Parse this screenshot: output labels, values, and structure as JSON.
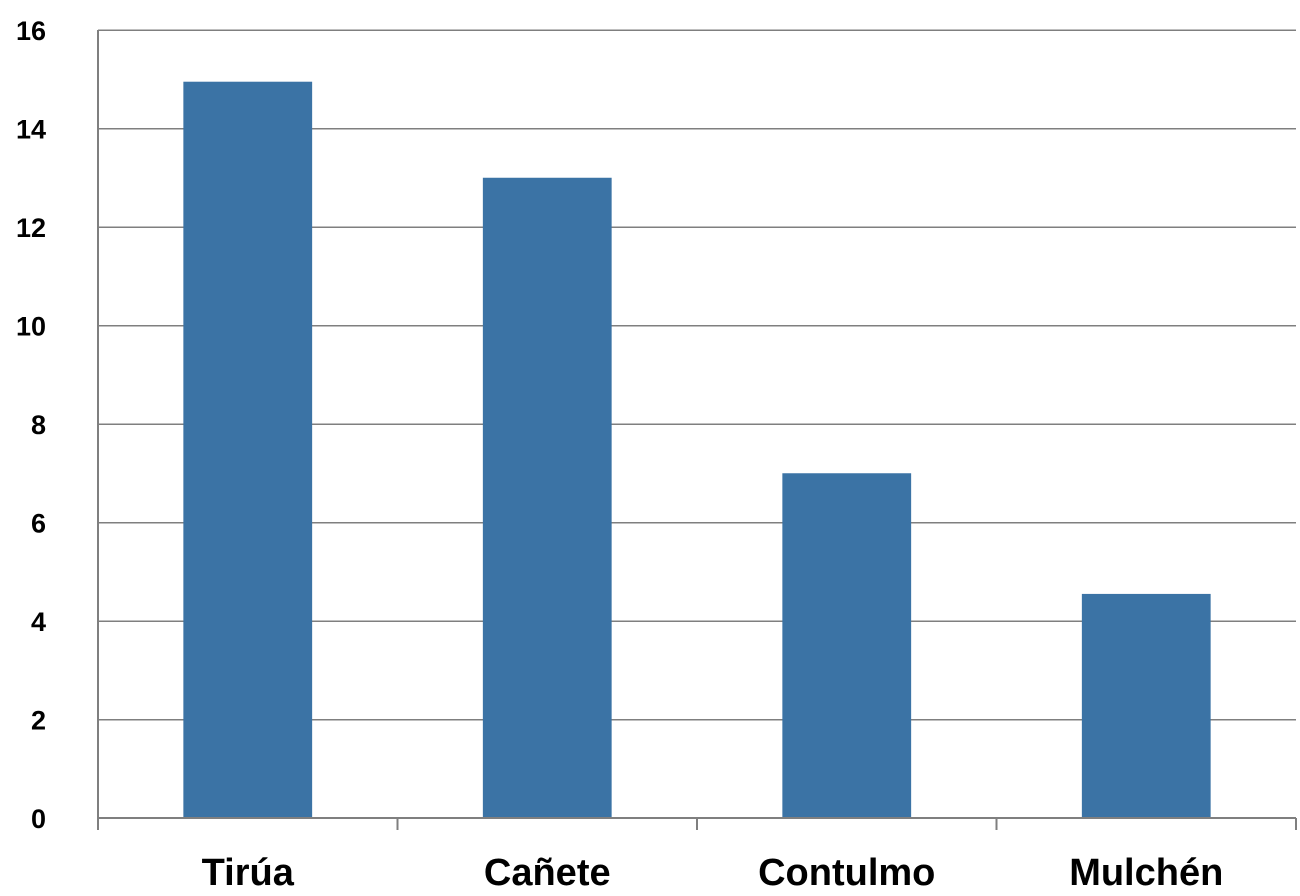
{
  "chart_data": {
    "type": "bar",
    "categories": [
      "Tirúa",
      "Cañete",
      "Contulmo",
      "Mulchén"
    ],
    "values": [
      14.95,
      13.0,
      7.0,
      4.55
    ],
    "ylim": [
      0,
      16
    ],
    "yticks": [
      "0",
      "2",
      "4",
      "6",
      "8",
      "10",
      "12",
      "14",
      "16"
    ],
    "grid": true,
    "legend": "none",
    "colors": {
      "bar": "#3B73A5",
      "grid": "#7F7F7F"
    }
  }
}
